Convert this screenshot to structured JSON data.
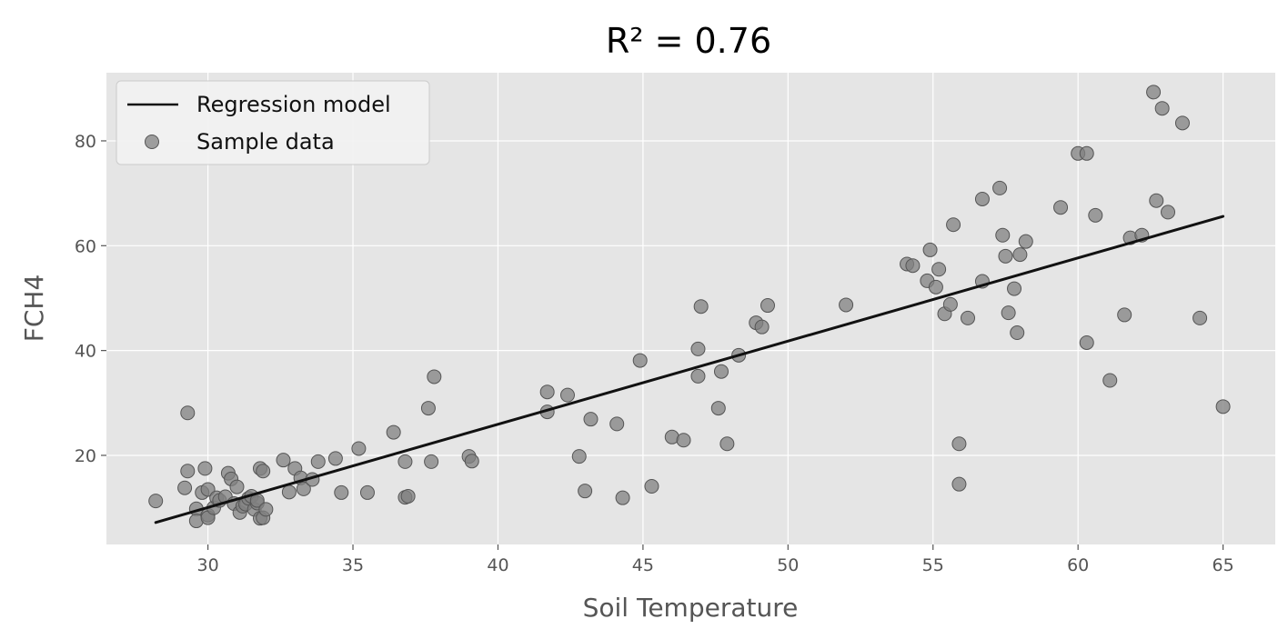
{
  "chart_data": {
    "type": "scatter",
    "title": "R² = 0.76",
    "xlabel": "Soil Temperature",
    "ylabel": "FCH4",
    "xlim": [
      26.5,
      66.8
    ],
    "ylim": [
      3,
      93
    ],
    "xticks": [
      30,
      35,
      40,
      45,
      50,
      55,
      60,
      65
    ],
    "yticks": [
      20,
      40,
      60,
      80
    ],
    "grid": true,
    "legend_position": "top-left",
    "legend": [
      "Regression model",
      "Sample data"
    ],
    "colors": {
      "plot_background": "#e5e5e5",
      "grid": "#ffffff",
      "points": "#808080",
      "point_edge": "#555555",
      "line": "#111111"
    },
    "series": [
      {
        "name": "Regression model",
        "kind": "line",
        "x": [
          28.2,
          65.0
        ],
        "y": [
          7.2,
          65.6
        ]
      },
      {
        "name": "Sample data",
        "kind": "scatter",
        "x": [
          28.2,
          29.2,
          29.3,
          29.3,
          29.6,
          29.6,
          29.8,
          29.9,
          30.0,
          30.0,
          30.0,
          30.2,
          30.3,
          30.4,
          30.6,
          30.7,
          30.8,
          30.9,
          31.0,
          31.1,
          31.2,
          31.3,
          31.4,
          31.5,
          31.6,
          31.7,
          31.7,
          31.8,
          31.8,
          31.9,
          31.9,
          32.0,
          32.6,
          32.8,
          33.0,
          33.2,
          33.3,
          33.6,
          33.8,
          34.4,
          34.6,
          35.2,
          35.5,
          36.4,
          36.8,
          36.8,
          36.9,
          37.6,
          37.7,
          37.8,
          39.0,
          39.1,
          41.7,
          41.7,
          42.4,
          42.8,
          43.0,
          43.2,
          44.1,
          44.3,
          44.9,
          45.3,
          46.0,
          46.4,
          46.9,
          46.9,
          47.0,
          47.6,
          47.7,
          47.9,
          48.3,
          48.9,
          49.1,
          49.3,
          52.0,
          54.1,
          54.3,
          54.8,
          54.9,
          55.1,
          55.2,
          55.4,
          55.6,
          55.7,
          55.9,
          55.9,
          56.2,
          56.7,
          56.7,
          57.3,
          57.4,
          57.5,
          57.6,
          57.8,
          57.9,
          58.0,
          58.2,
          59.4,
          60.0,
          60.3,
          60.3,
          60.6,
          61.1,
          61.6,
          61.8,
          62.2,
          62.6,
          62.7,
          62.9,
          63.1,
          63.6,
          64.2,
          65.0
        ],
        "y": [
          11.3,
          13.8,
          28.1,
          17.0,
          9.8,
          7.5,
          12.9,
          17.5,
          8.6,
          13.5,
          8.1,
          10.0,
          11.9,
          11.4,
          12.1,
          16.6,
          15.5,
          10.8,
          14.0,
          9.1,
          10.3,
          10.7,
          11.8,
          12.2,
          9.7,
          10.9,
          11.4,
          17.5,
          8.0,
          17.0,
          8.1,
          9.7,
          19.1,
          13.0,
          17.5,
          15.7,
          13.6,
          15.4,
          18.8,
          19.4,
          12.9,
          21.3,
          12.9,
          24.4,
          18.8,
          12.0,
          12.2,
          29.0,
          18.8,
          35.0,
          19.8,
          18.9,
          32.1,
          28.3,
          31.5,
          19.8,
          13.2,
          26.9,
          26.0,
          11.9,
          38.1,
          14.1,
          23.5,
          22.9,
          40.3,
          35.1,
          48.4,
          29.0,
          36.0,
          22.2,
          39.1,
          45.3,
          44.5,
          48.6,
          48.7,
          56.5,
          56.2,
          53.3,
          59.2,
          52.1,
          55.5,
          47.0,
          48.8,
          64.0,
          22.2,
          14.5,
          46.2,
          68.9,
          53.2,
          71.0,
          62.0,
          58.0,
          47.2,
          51.8,
          43.4,
          58.3,
          60.8,
          67.3,
          77.6,
          77.6,
          41.5,
          65.8,
          34.3,
          46.8,
          61.5,
          62.0,
          89.3,
          68.6,
          86.2,
          66.4,
          83.4,
          46.2,
          29.3
        ]
      }
    ]
  }
}
